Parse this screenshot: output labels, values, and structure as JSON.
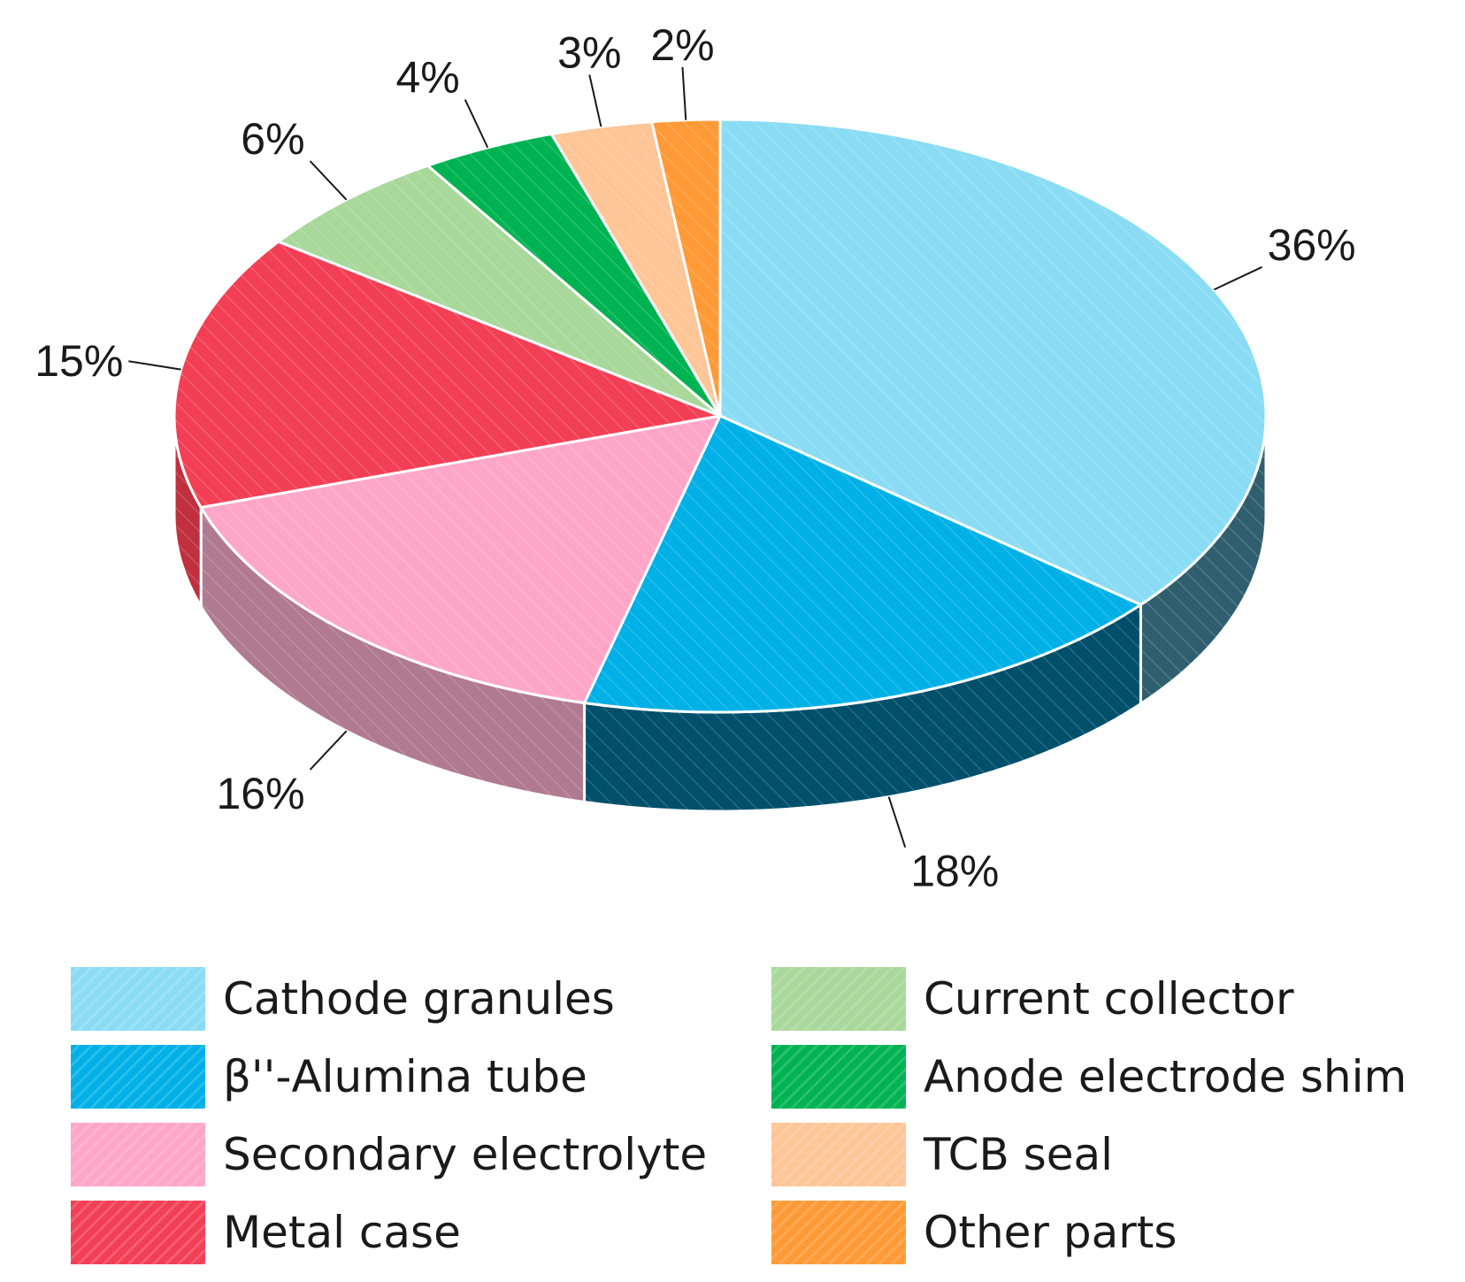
{
  "chart_data": {
    "type": "pie",
    "style": "3d",
    "labels": [
      "Cathode granules",
      "β''-Alumina tube",
      "Secondary electrolyte",
      "Metal case",
      "Current collector",
      "Anode electrode shim",
      "TCB seal",
      "Other parts"
    ],
    "values": [
      36,
      18,
      16,
      15,
      6,
      4,
      3,
      2
    ],
    "value_labels": [
      "36%",
      "18%",
      "16%",
      "15%",
      "6%",
      "4%",
      "3%",
      "2%"
    ],
    "colors": [
      "#8adcf4",
      "#00b0e6",
      "#ffa6c8",
      "#f23f55",
      "#a8d89a",
      "#00b352",
      "#fec597",
      "#ff9a36"
    ],
    "side_colors": [
      "#2f5f6e",
      "#004f6b",
      "#b07a90",
      "#c0303f",
      "#7ca872",
      "#007a3a",
      "#c89a70",
      "#c07020"
    ],
    "start": "12 o'clock",
    "direction": "clockwise",
    "legend_position": "bottom",
    "title": "",
    "pattern": "diagonal-hatch"
  }
}
